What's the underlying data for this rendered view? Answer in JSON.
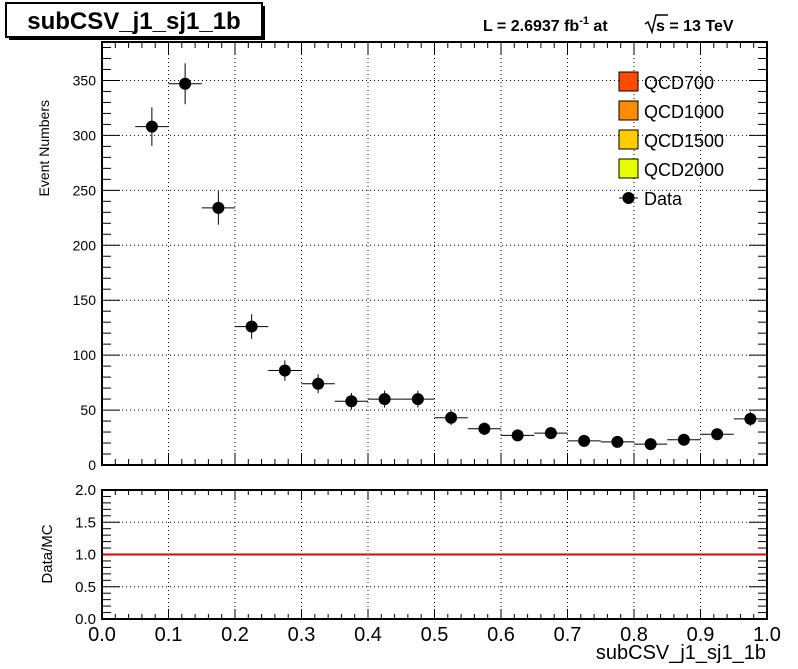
{
  "header": {
    "title": "subCSV_j1_sj1_1b",
    "lumi_prefix": "L = 2.6937 fb",
    "lumi_exp": "-1",
    "lumi_mid": " at  ",
    "sqrt_s_label": "s",
    "energy": " = 13 TeV"
  },
  "chart_data": [
    {
      "type": "scatter",
      "ylabel": "Event Numbers",
      "xlim": [
        0.0,
        1.0
      ],
      "ylim": [
        0,
        385
      ],
      "y_ticks": [
        0,
        50,
        100,
        150,
        200,
        250,
        300,
        350
      ],
      "grid": true,
      "legend_position": "top-right",
      "legend": [
        {
          "name": "QCD700",
          "color": "#ff4a00",
          "kind": "box"
        },
        {
          "name": "QCD1000",
          "color": "#ff8c00",
          "kind": "box"
        },
        {
          "name": "QCD1500",
          "color": "#ffcc00",
          "kind": "box"
        },
        {
          "name": "QCD2000",
          "color": "#e6ff00",
          "kind": "box"
        },
        {
          "name": "Data",
          "color": "#000000",
          "kind": "marker"
        }
      ],
      "series": [
        {
          "name": "Data",
          "bin_width": 0.05,
          "x": [
            0.075,
            0.125,
            0.175,
            0.225,
            0.275,
            0.325,
            0.375,
            0.425,
            0.475,
            0.525,
            0.575,
            0.625,
            0.675,
            0.725,
            0.775,
            0.825,
            0.875,
            0.925,
            0.975
          ],
          "y": [
            308,
            347,
            234,
            126,
            86,
            74,
            58,
            60,
            60,
            43,
            33,
            27,
            29,
            22,
            21,
            19,
            23,
            28,
            42
          ],
          "yerr": [
            17.5,
            18.6,
            15.3,
            11.2,
            9.3,
            8.6,
            7.6,
            7.7,
            7.7,
            6.6,
            5.7,
            5.2,
            5.4,
            4.7,
            4.6,
            4.4,
            4.8,
            5.3,
            6.5
          ]
        }
      ]
    },
    {
      "type": "line",
      "ylabel": "Data/MC",
      "xlabel": "subCSV_j1_sj1_1b",
      "xlim": [
        0.0,
        1.0
      ],
      "ylim": [
        0.0,
        2.0
      ],
      "y_ticks": [
        "0.0",
        "0.5",
        "1.0",
        "1.5",
        "2.0"
      ],
      "x_ticks": [
        "0.0",
        "0.1",
        "0.2",
        "0.3",
        "0.4",
        "0.5",
        "0.6",
        "0.7",
        "0.8",
        "0.9",
        "1.0"
      ],
      "grid": true,
      "reference_line": {
        "y": 1.0,
        "color": "#e00000"
      }
    }
  ]
}
